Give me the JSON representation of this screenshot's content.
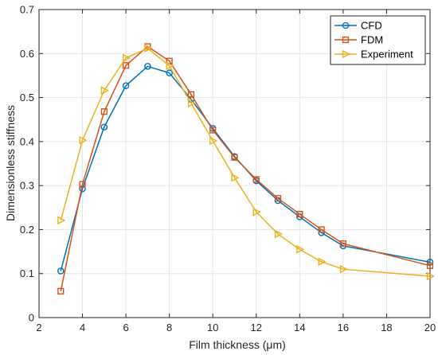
{
  "chart_data": {
    "type": "line",
    "title": "",
    "xlabel": "Film thickness (μm)",
    "ylabel": "Dimensionless stiffness",
    "xlim": [
      2,
      20
    ],
    "ylim": [
      0,
      0.7
    ],
    "xticks": [
      2,
      4,
      6,
      8,
      10,
      12,
      14,
      16,
      18,
      20
    ],
    "yticks": [
      0,
      0.1,
      0.2,
      0.3,
      0.4,
      0.5,
      0.6,
      0.7
    ],
    "grid": true,
    "legend_position": "top-right",
    "series": [
      {
        "name": "CFD",
        "color": "#0072BD",
        "marker": "circle",
        "x": [
          3,
          4,
          5,
          6,
          7,
          8,
          9,
          10,
          11,
          12,
          13,
          14,
          15,
          16,
          20
        ],
        "y": [
          0.106,
          0.293,
          0.433,
          0.527,
          0.571,
          0.556,
          0.496,
          0.43,
          0.366,
          0.311,
          0.266,
          0.229,
          0.193,
          0.163,
          0.126
        ]
      },
      {
        "name": "FDM",
        "color": "#D95319",
        "marker": "square",
        "x": [
          3,
          4,
          5,
          6,
          7,
          8,
          9,
          10,
          11,
          12,
          13,
          14,
          15,
          16,
          20
        ],
        "y": [
          0.06,
          0.303,
          0.468,
          0.573,
          0.616,
          0.583,
          0.507,
          0.426,
          0.364,
          0.314,
          0.271,
          0.235,
          0.2,
          0.168,
          0.118
        ]
      },
      {
        "name": "Experiment",
        "color": "#EDB120",
        "marker": "triangle-right",
        "x": [
          3,
          4,
          5,
          6,
          7,
          8,
          9,
          10,
          11,
          12,
          13,
          14,
          15,
          16,
          20
        ],
        "y": [
          0.221,
          0.403,
          0.516,
          0.59,
          0.612,
          0.572,
          0.487,
          0.402,
          0.318,
          0.24,
          0.19,
          0.155,
          0.127,
          0.11,
          0.094
        ]
      }
    ]
  }
}
